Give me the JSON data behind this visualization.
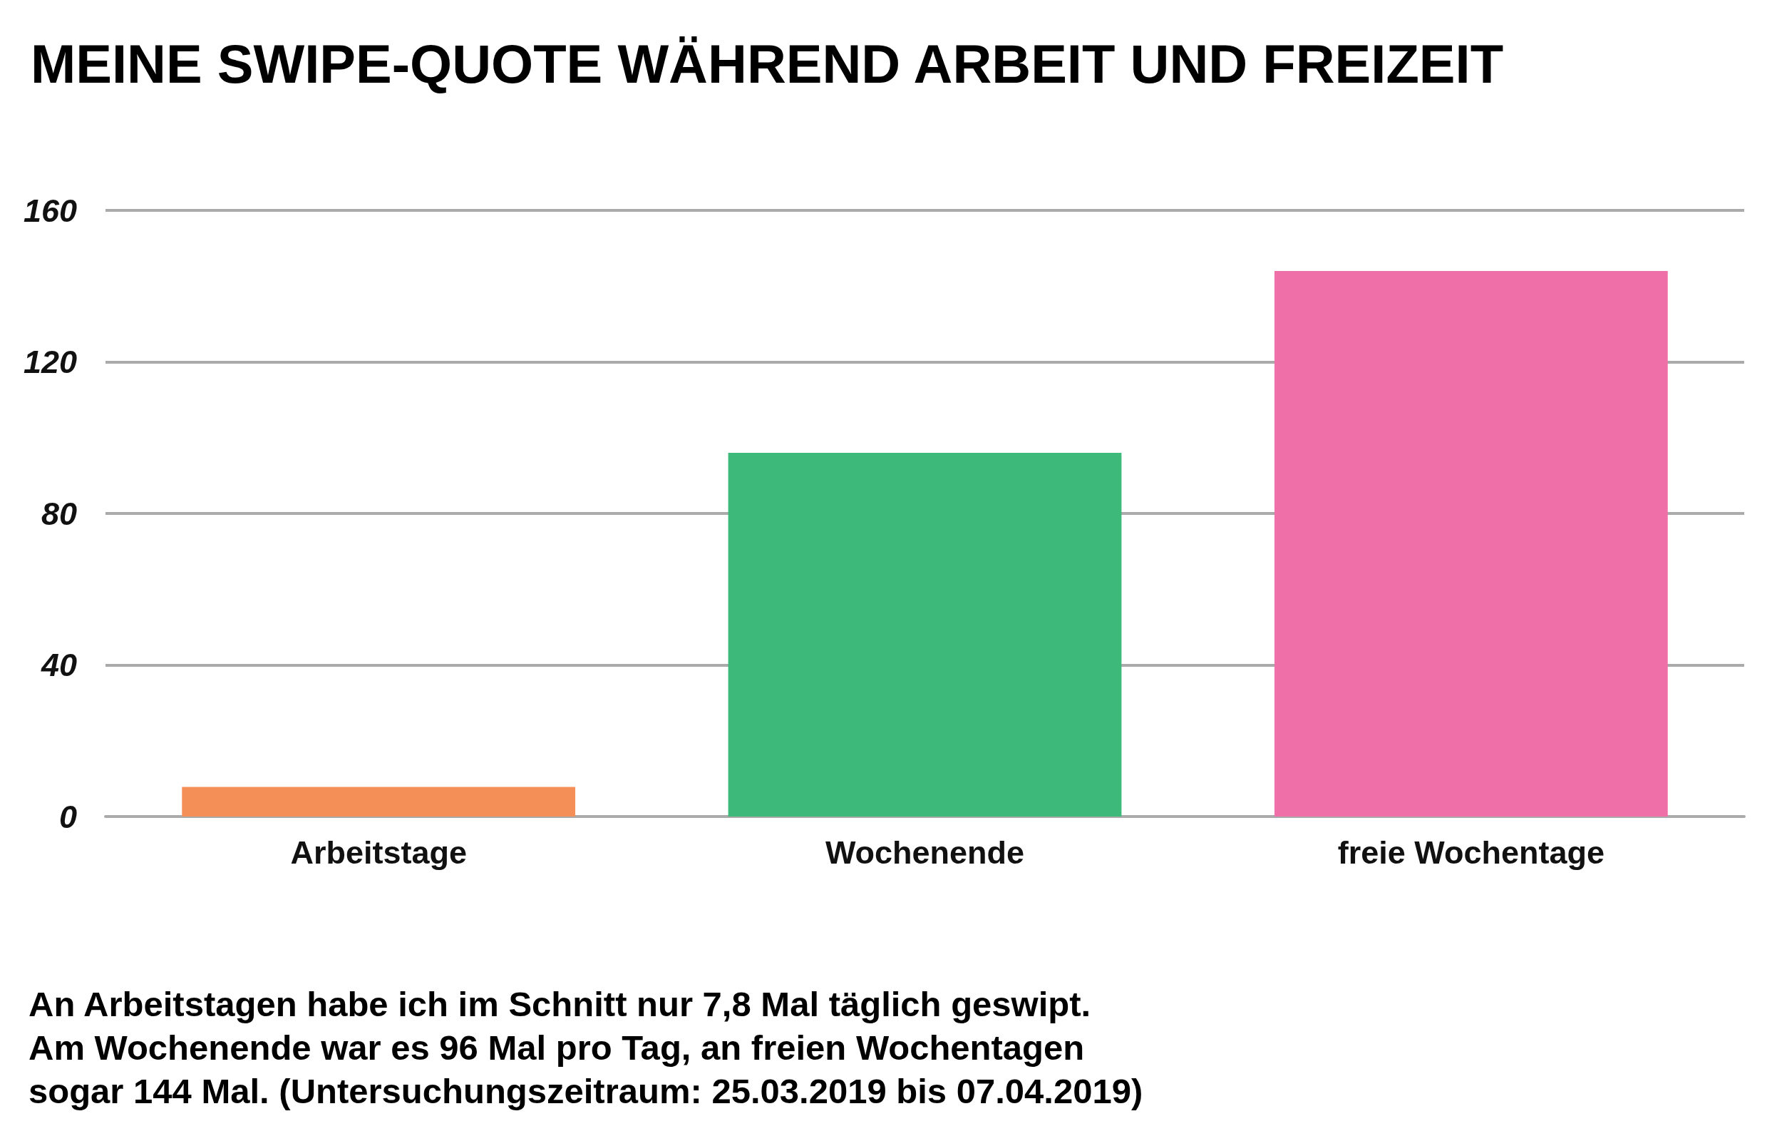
{
  "chart_data": {
    "type": "bar",
    "title": "MEINE SWIPE-QUOTE WÄHREND ARBEIT UND FREIZEIT",
    "categories": [
      "Arbeitstage",
      "Wochenende",
      "freie Wochentage"
    ],
    "values": [
      7.8,
      96,
      144
    ],
    "colors": [
      "#f58f58",
      "#3dba79",
      "#ef6fa8"
    ],
    "ylim": [
      0,
      160
    ],
    "yticks": [
      0,
      40,
      80,
      120,
      160
    ],
    "grid": "y",
    "annotations": [
      "An Arbeitstagen habe ich im Schnitt nur 7,8 Mal täglich geswipt.",
      "Am Wochenende war es 96 Mal pro Tag, an freien Wochentagen",
      "sogar 144 Mal. (Untersuchungszeitraum: 25.03.2019 bis 07.04.2019)"
    ]
  }
}
